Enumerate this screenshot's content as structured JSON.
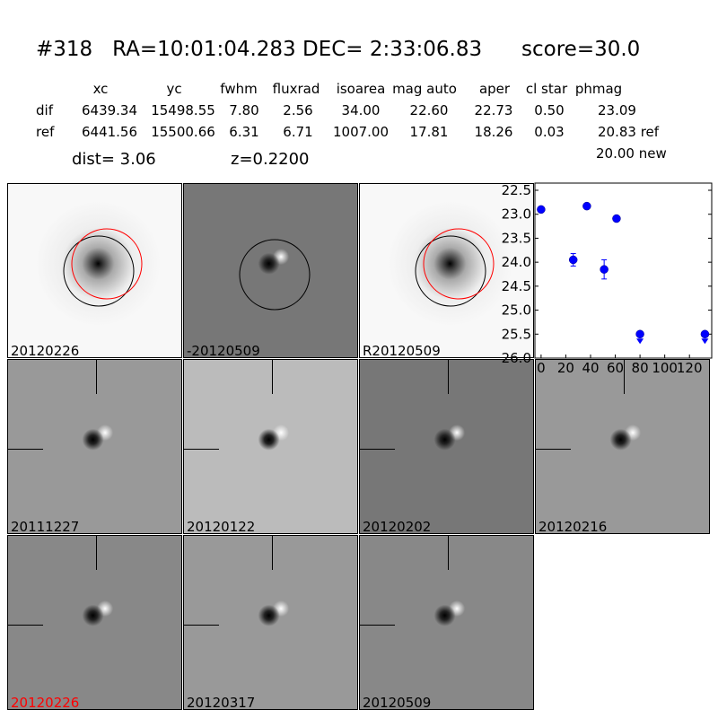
{
  "title": {
    "id": "#318",
    "ra": "RA=10:01:04.283",
    "dec": "DEC= 2:33:06.83",
    "score": "score=30.0"
  },
  "table": {
    "headers": [
      "xc",
      "yc",
      "fwhm",
      "fluxrad",
      "isoarea",
      "mag auto",
      "aper",
      "cl star",
      "phmag"
    ],
    "rows": [
      {
        "label": "dif",
        "values": [
          "6439.34",
          "15498.55",
          "7.80",
          "2.56",
          "34.00",
          "22.60",
          "22.73",
          "0.50",
          "23.09"
        ]
      },
      {
        "label": "ref",
        "values": [
          "6441.56",
          "15500.66",
          "6.31",
          "6.71",
          "1007.00",
          "17.81",
          "18.26",
          "0.03",
          "20.83 ref"
        ]
      }
    ],
    "extra": "20.00 new",
    "dist": "dist=  3.06",
    "z": "z=0.2200"
  },
  "stamps": [
    {
      "label": "20120226",
      "bg": "#f8f8f8",
      "type": "ref"
    },
    {
      "label": "-20120509",
      "bg": "#777",
      "type": "dif"
    },
    {
      "label": "R20120509",
      "bg": "#f8f8f8",
      "type": "ref"
    },
    {
      "label": "20111227",
      "bg": "#999",
      "type": "dif"
    },
    {
      "label": "20120122",
      "bg": "#bbb",
      "type": "dif"
    },
    {
      "label": "20120202",
      "bg": "#777",
      "type": "dif"
    },
    {
      "label": "20120216",
      "bg": "#999",
      "type": "dif"
    },
    {
      "label": "20120226",
      "bg": "#888",
      "type": "dif",
      "color": "#ff0000"
    },
    {
      "label": "20120317",
      "bg": "#999",
      "type": "dif"
    },
    {
      "label": "20120509",
      "bg": "#888",
      "type": "dif"
    }
  ],
  "chart_data": {
    "type": "scatter",
    "xlim": [
      -5,
      138
    ],
    "ylim": [
      26.0,
      22.35
    ],
    "y_inverted": true,
    "xticks": [
      0,
      20,
      40,
      60,
      80,
      100,
      120
    ],
    "yticks": [
      22.5,
      23.0,
      23.5,
      24.0,
      24.5,
      25.0,
      25.5,
      26.0
    ],
    "ytick_labels": [
      "22.5",
      "23.0",
      "23.5",
      "24.0",
      "24.5",
      "25.0",
      "25.5",
      "26.0"
    ],
    "color": "#0000ff",
    "points": [
      {
        "x": 0,
        "y": 22.9,
        "err": 0
      },
      {
        "x": 26,
        "y": 23.95,
        "err": 0.13
      },
      {
        "x": 37,
        "y": 22.83,
        "err": 0
      },
      {
        "x": 51,
        "y": 24.15,
        "err": 0.2
      },
      {
        "x": 61,
        "y": 23.09,
        "err": 0
      },
      {
        "x": 80,
        "y": 25.5,
        "err": 0,
        "upper_limit": true
      },
      {
        "x": 132.5,
        "y": 25.5,
        "err": 0,
        "upper_limit": true
      }
    ]
  }
}
